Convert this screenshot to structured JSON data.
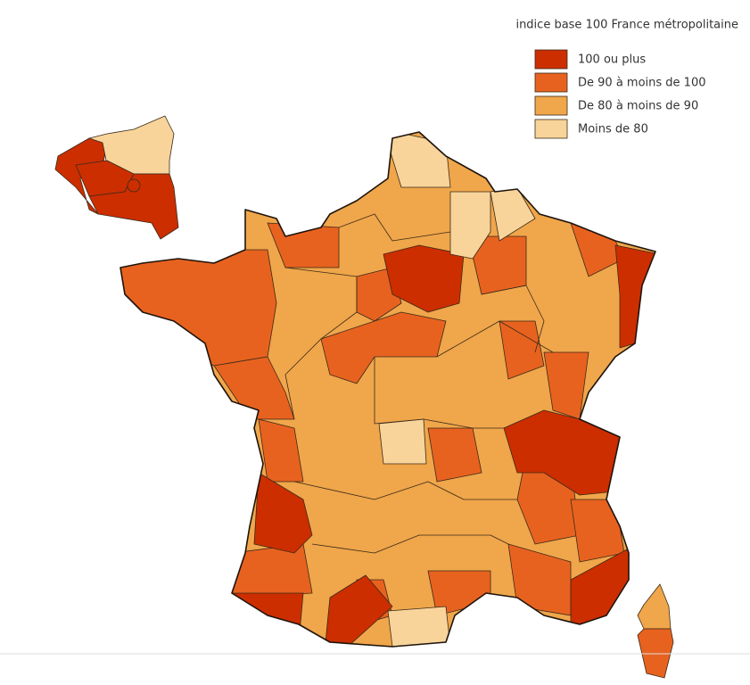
{
  "legend": {
    "title": "indice base 100 France métropolitaine",
    "items": [
      {
        "label": "100 ou plus",
        "color": "#cc2e00"
      },
      {
        "label": "De 90 à moins de 100",
        "color": "#e8621f"
      },
      {
        "label": "De 80 à moins de 90",
        "color": "#f0a64a"
      },
      {
        "label": "Moins de 80",
        "color": "#f8d49a"
      }
    ]
  }
}
